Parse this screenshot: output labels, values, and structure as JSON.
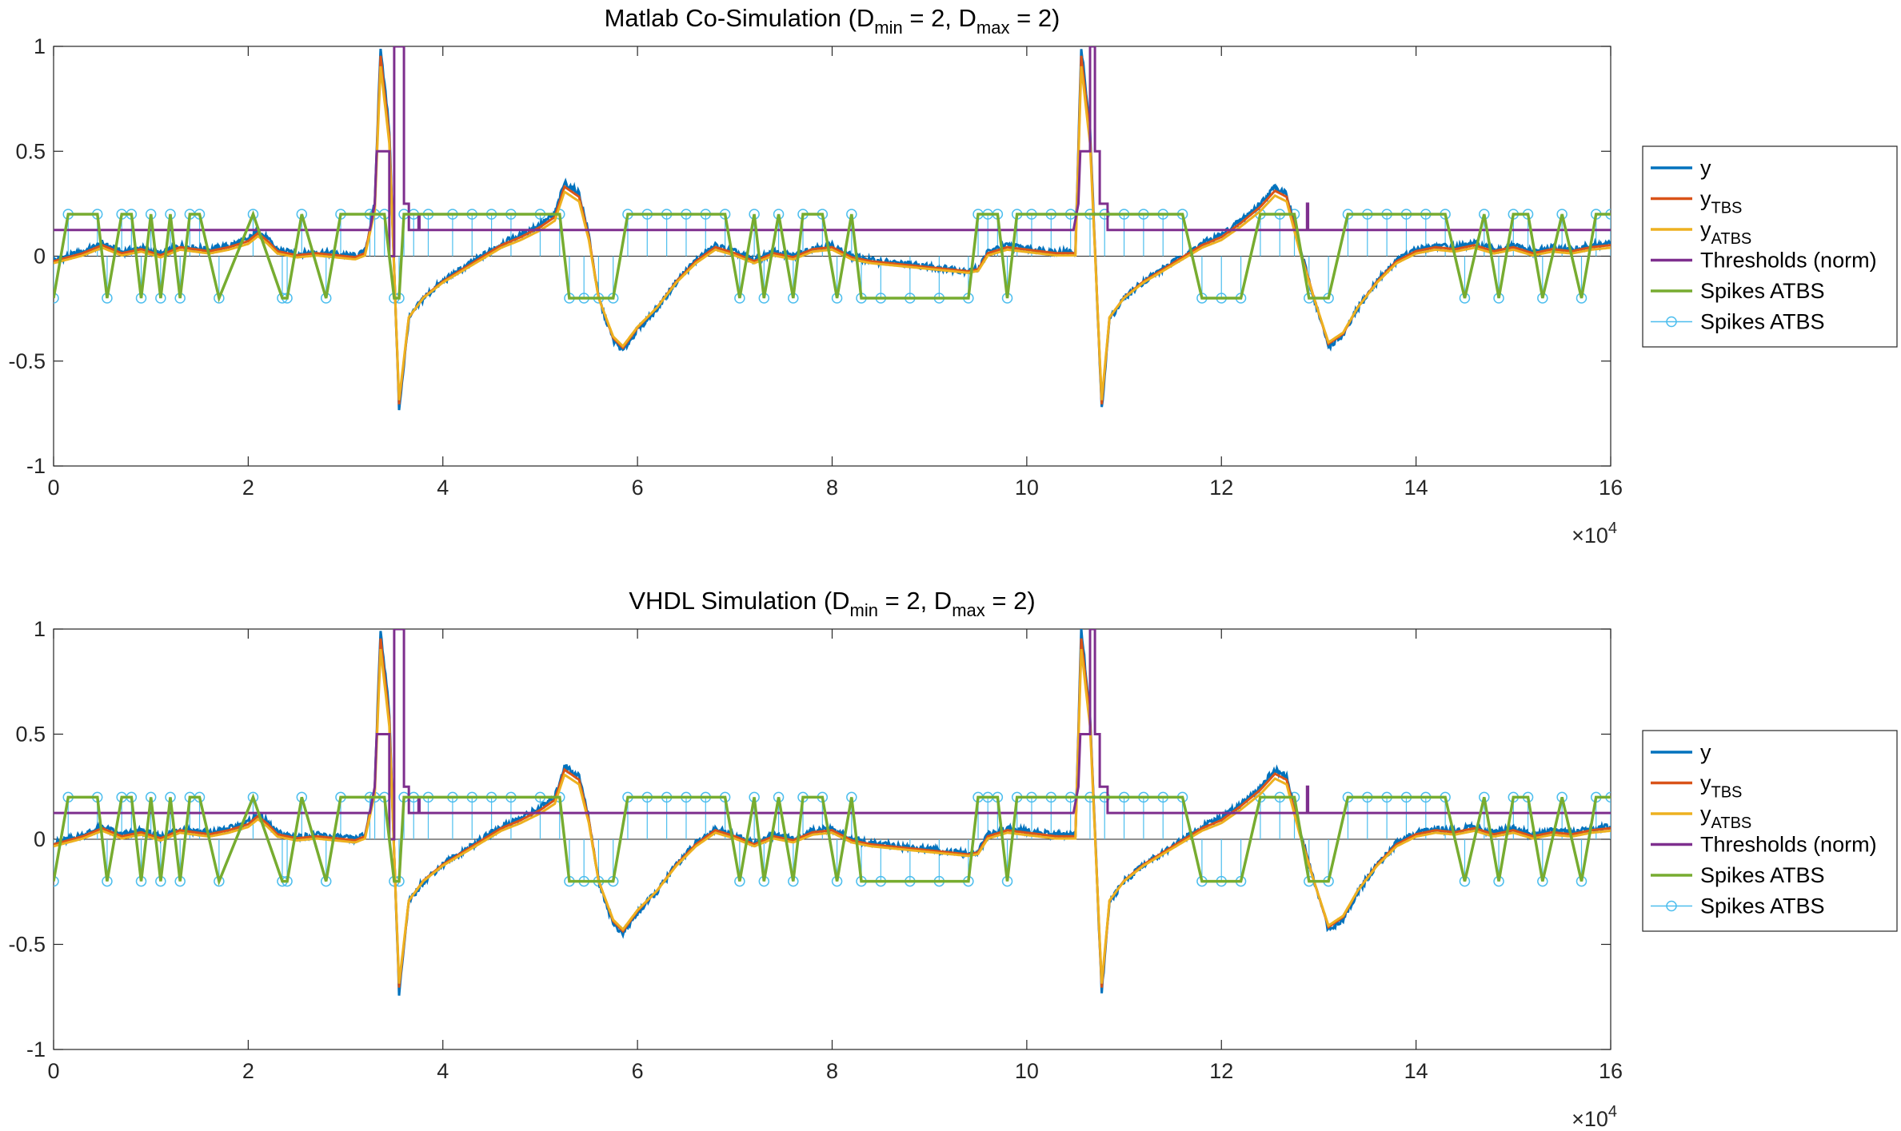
{
  "colors": {
    "y": "#0072BD",
    "y_tbs": "#D95319",
    "y_atbs": "#EDB120",
    "thresholds": "#7E2F8E",
    "spikes_line": "#77AC30",
    "spikes_stem": "#4DBEEE",
    "axis": "#262626"
  },
  "chart_data": [
    {
      "type": "line",
      "title": {
        "prefix": "Matlab Co-Simulation (D",
        "sub1": "min",
        "mid": " = 2, D",
        "sub2": "max",
        "suffix": " = 2)"
      },
      "xlim": [
        0,
        160000
      ],
      "ylim": [
        -1,
        1
      ],
      "x_exponent_label": {
        "base": "×10",
        "exp": "4"
      },
      "xticks": [
        0,
        20000,
        40000,
        60000,
        80000,
        100000,
        120000,
        140000,
        160000
      ],
      "xtick_labels": [
        "0",
        "2",
        "4",
        "6",
        "8",
        "10",
        "12",
        "14",
        "16"
      ],
      "yticks": [
        -1,
        -0.5,
        0,
        0.5,
        1
      ],
      "ytick_labels": [
        "-1",
        "-0.5",
        "0",
        "0.5",
        "1"
      ],
      "legend_position": "east-outside",
      "legend": [
        {
          "key": "y",
          "base": "y",
          "sub": ""
        },
        {
          "key": "y_tbs",
          "base": "y",
          "sub": "TBS"
        },
        {
          "key": "y_atbs",
          "base": "y",
          "sub": "ATBS"
        },
        {
          "key": "thresholds",
          "base": "Thresholds (norm)",
          "sub": ""
        },
        {
          "key": "spikes_line",
          "base": "Spikes ATBS",
          "sub": ""
        },
        {
          "key": "spikes_stem",
          "base": "Spikes ATBS",
          "sub": ""
        }
      ],
      "series": {
        "signal_shape": [
          [
            0,
            -0.02
          ],
          [
            3000,
            0.02
          ],
          [
            5000,
            0.06
          ],
          [
            7000,
            0.02
          ],
          [
            9000,
            0.04
          ],
          [
            11000,
            0.01
          ],
          [
            13000,
            0.05
          ],
          [
            16000,
            0.03
          ],
          [
            18000,
            0.05
          ],
          [
            20000,
            0.08
          ],
          [
            21000,
            0.12
          ],
          [
            22000,
            0.08
          ],
          [
            23000,
            0.03
          ],
          [
            25000,
            0.01
          ],
          [
            27000,
            0.02
          ],
          [
            29000,
            0.01
          ],
          [
            31000,
            0.0
          ],
          [
            32000,
            0.02
          ],
          [
            33000,
            0.25
          ],
          [
            33600,
            1.0
          ],
          [
            34500,
            0.6
          ],
          [
            35500,
            -0.73
          ],
          [
            36500,
            -0.3
          ],
          [
            38000,
            -0.2
          ],
          [
            40000,
            -0.12
          ],
          [
            42000,
            -0.06
          ],
          [
            44000,
            0.0
          ],
          [
            46000,
            0.06
          ],
          [
            48000,
            0.1
          ],
          [
            50000,
            0.15
          ],
          [
            51500,
            0.2
          ],
          [
            52500,
            0.35
          ],
          [
            54000,
            0.3
          ],
          [
            55000,
            0.1
          ],
          [
            56000,
            -0.2
          ],
          [
            57500,
            -0.4
          ],
          [
            58500,
            -0.45
          ],
          [
            60000,
            -0.35
          ],
          [
            62000,
            -0.25
          ],
          [
            64000,
            -0.12
          ],
          [
            66000,
            -0.02
          ],
          [
            68000,
            0.05
          ],
          [
            70000,
            0.02
          ],
          [
            72000,
            -0.02
          ],
          [
            74000,
            0.02
          ],
          [
            76000,
            0.0
          ],
          [
            78000,
            0.04
          ],
          [
            80000,
            0.05
          ],
          [
            82000,
            0.0
          ],
          [
            84000,
            -0.02
          ],
          [
            86000,
            -0.03
          ],
          [
            88000,
            -0.04
          ],
          [
            90000,
            -0.05
          ],
          [
            92000,
            -0.06
          ],
          [
            94000,
            -0.07
          ],
          [
            95000,
            -0.06
          ],
          [
            96000,
            0.02
          ],
          [
            98000,
            0.05
          ],
          [
            103000,
            0.02
          ],
          [
            105000,
            0.02
          ],
          [
            105600,
            1.0
          ],
          [
            106500,
            0.6
          ],
          [
            107700,
            -0.73
          ],
          [
            108500,
            -0.3
          ],
          [
            110000,
            -0.2
          ],
          [
            112000,
            -0.12
          ],
          [
            114000,
            -0.06
          ],
          [
            116000,
            0.0
          ],
          [
            118000,
            0.06
          ],
          [
            120000,
            0.1
          ],
          [
            122000,
            0.17
          ],
          [
            124000,
            0.25
          ],
          [
            125500,
            0.33
          ],
          [
            126700,
            0.3
          ],
          [
            128000,
            0.05
          ],
          [
            129500,
            -0.2
          ],
          [
            131000,
            -0.43
          ],
          [
            132500,
            -0.38
          ],
          [
            134000,
            -0.25
          ],
          [
            136000,
            -0.12
          ],
          [
            138000,
            -0.02
          ],
          [
            140000,
            0.03
          ],
          [
            142000,
            0.05
          ],
          [
            144000,
            0.04
          ],
          [
            146000,
            0.06
          ],
          [
            148000,
            0.03
          ],
          [
            150000,
            0.05
          ],
          [
            152000,
            0.02
          ],
          [
            154000,
            0.04
          ],
          [
            156000,
            0.03
          ],
          [
            158000,
            0.05
          ],
          [
            160000,
            0.06
          ]
        ],
        "thresholds": {
          "baseline": 0.125,
          "bursts": [
            [
              32500,
              0.125
            ],
            [
              33000,
              0.25
            ],
            [
              33200,
              0.5
            ],
            [
              34500,
              0.5
            ],
            [
              34500,
              0.0
            ],
            [
              35000,
              0.0
            ],
            [
              35000,
              1.0
            ],
            [
              36000,
              1.0
            ],
            [
              36000,
              0.25
            ],
            [
              36500,
              0.25
            ],
            [
              36500,
              0.125
            ],
            [
              37500,
              0.125
            ],
            [
              37500,
              0.2
            ],
            [
              37600,
              0.2
            ],
            [
              37600,
              0.125
            ]
          ],
          "bursts2": [
            [
              104800,
              0.125
            ],
            [
              105300,
              0.25
            ],
            [
              105500,
              0.5
            ],
            [
              106500,
              0.5
            ],
            [
              106500,
              1.0
            ],
            [
              107000,
              1.0
            ],
            [
              107000,
              0.5
            ],
            [
              107500,
              0.5
            ],
            [
              107500,
              0.25
            ],
            [
              108300,
              0.25
            ],
            [
              108300,
              0.125
            ],
            [
              128800,
              0.125
            ],
            [
              128800,
              0.25
            ],
            [
              128900,
              0.25
            ],
            [
              128900,
              0.125
            ]
          ]
        },
        "spike_events": [
          [
            0,
            -0.2
          ],
          [
            1500,
            0.2
          ],
          [
            4500,
            0.2
          ],
          [
            5500,
            -0.2
          ],
          [
            7000,
            0.2
          ],
          [
            8000,
            0.2
          ],
          [
            9000,
            -0.2
          ],
          [
            10000,
            0.2
          ],
          [
            11000,
            -0.2
          ],
          [
            12000,
            0.2
          ],
          [
            13000,
            -0.2
          ],
          [
            14000,
            0.2
          ],
          [
            15000,
            0.2
          ],
          [
            17000,
            -0.2
          ],
          [
            20500,
            0.2
          ],
          [
            23500,
            -0.2
          ],
          [
            24000,
            -0.2
          ],
          [
            25500,
            0.2
          ],
          [
            28000,
            -0.2
          ],
          [
            29500,
            0.2
          ],
          [
            32500,
            0.2
          ],
          [
            33000,
            0.2
          ],
          [
            34000,
            0.2
          ],
          [
            35000,
            -0.2
          ],
          [
            35500,
            -0.2
          ],
          [
            36000,
            0.2
          ],
          [
            37000,
            0.2
          ],
          [
            38500,
            0.2
          ],
          [
            41000,
            0.2
          ],
          [
            43000,
            0.2
          ],
          [
            45000,
            0.2
          ],
          [
            47000,
            0.2
          ],
          [
            50000,
            0.2
          ],
          [
            52000,
            0.2
          ],
          [
            53000,
            -0.2
          ],
          [
            54500,
            -0.2
          ],
          [
            56000,
            -0.2
          ],
          [
            57500,
            -0.2
          ],
          [
            59000,
            0.2
          ],
          [
            61000,
            0.2
          ],
          [
            63000,
            0.2
          ],
          [
            65000,
            0.2
          ],
          [
            67000,
            0.2
          ],
          [
            69000,
            0.2
          ],
          [
            70500,
            -0.2
          ],
          [
            72000,
            0.2
          ],
          [
            73000,
            -0.2
          ],
          [
            74500,
            0.2
          ],
          [
            76000,
            -0.2
          ],
          [
            77000,
            0.2
          ],
          [
            79000,
            0.2
          ],
          [
            80500,
            -0.2
          ],
          [
            82000,
            0.2
          ],
          [
            83000,
            -0.2
          ],
          [
            85000,
            -0.2
          ],
          [
            88000,
            -0.2
          ],
          [
            91000,
            -0.2
          ],
          [
            94000,
            -0.2
          ],
          [
            95000,
            0.2
          ],
          [
            96000,
            0.2
          ],
          [
            97000,
            0.2
          ],
          [
            98000,
            -0.2
          ],
          [
            99000,
            0.2
          ],
          [
            100500,
            0.2
          ],
          [
            102500,
            0.2
          ],
          [
            104500,
            0.2
          ],
          [
            106500,
            0.2
          ],
          [
            108000,
            0.2
          ],
          [
            110000,
            0.2
          ],
          [
            112000,
            0.2
          ],
          [
            114000,
            0.2
          ],
          [
            116000,
            0.2
          ],
          [
            118000,
            -0.2
          ],
          [
            120000,
            -0.2
          ],
          [
            122000,
            -0.2
          ],
          [
            124000,
            0.2
          ],
          [
            126000,
            0.2
          ],
          [
            127500,
            0.2
          ],
          [
            129000,
            -0.2
          ],
          [
            131000,
            -0.2
          ],
          [
            133000,
            0.2
          ],
          [
            135000,
            0.2
          ],
          [
            137000,
            0.2
          ],
          [
            139000,
            0.2
          ],
          [
            141000,
            0.2
          ],
          [
            143000,
            0.2
          ],
          [
            145000,
            -0.2
          ],
          [
            147000,
            0.2
          ],
          [
            148500,
            -0.2
          ],
          [
            150000,
            0.2
          ],
          [
            151500,
            0.2
          ],
          [
            153000,
            -0.2
          ],
          [
            155000,
            0.2
          ],
          [
            157000,
            -0.2
          ],
          [
            158500,
            0.2
          ],
          [
            160000,
            0.2
          ]
        ]
      }
    },
    {
      "type": "line",
      "title": {
        "prefix": "VHDL Simulation (D",
        "sub1": "min",
        "mid": " = 2, D",
        "sub2": "max",
        "suffix": " = 2)"
      },
      "xlim": [
        0,
        160000
      ],
      "ylim": [
        -1,
        1
      ],
      "x_exponent_label": {
        "base": "×10",
        "exp": "4"
      },
      "xticks": [
        0,
        20000,
        40000,
        60000,
        80000,
        100000,
        120000,
        140000,
        160000
      ],
      "xtick_labels": [
        "0",
        "2",
        "4",
        "6",
        "8",
        "10",
        "12",
        "14",
        "16"
      ],
      "yticks": [
        -1,
        -0.5,
        0,
        0.5,
        1
      ],
      "ytick_labels": [
        "-1",
        "-0.5",
        "0",
        "0.5",
        "1"
      ],
      "legend_position": "east-outside",
      "legend": [
        {
          "key": "y",
          "base": "y",
          "sub": ""
        },
        {
          "key": "y_tbs",
          "base": "y",
          "sub": "TBS"
        },
        {
          "key": "y_atbs",
          "base": "y",
          "sub": "ATBS"
        },
        {
          "key": "thresholds",
          "base": "Thresholds (norm)",
          "sub": ""
        },
        {
          "key": "spikes_line",
          "base": "Spikes ATBS",
          "sub": ""
        },
        {
          "key": "spikes_stem",
          "base": "Spikes ATBS",
          "sub": ""
        }
      ]
    }
  ]
}
